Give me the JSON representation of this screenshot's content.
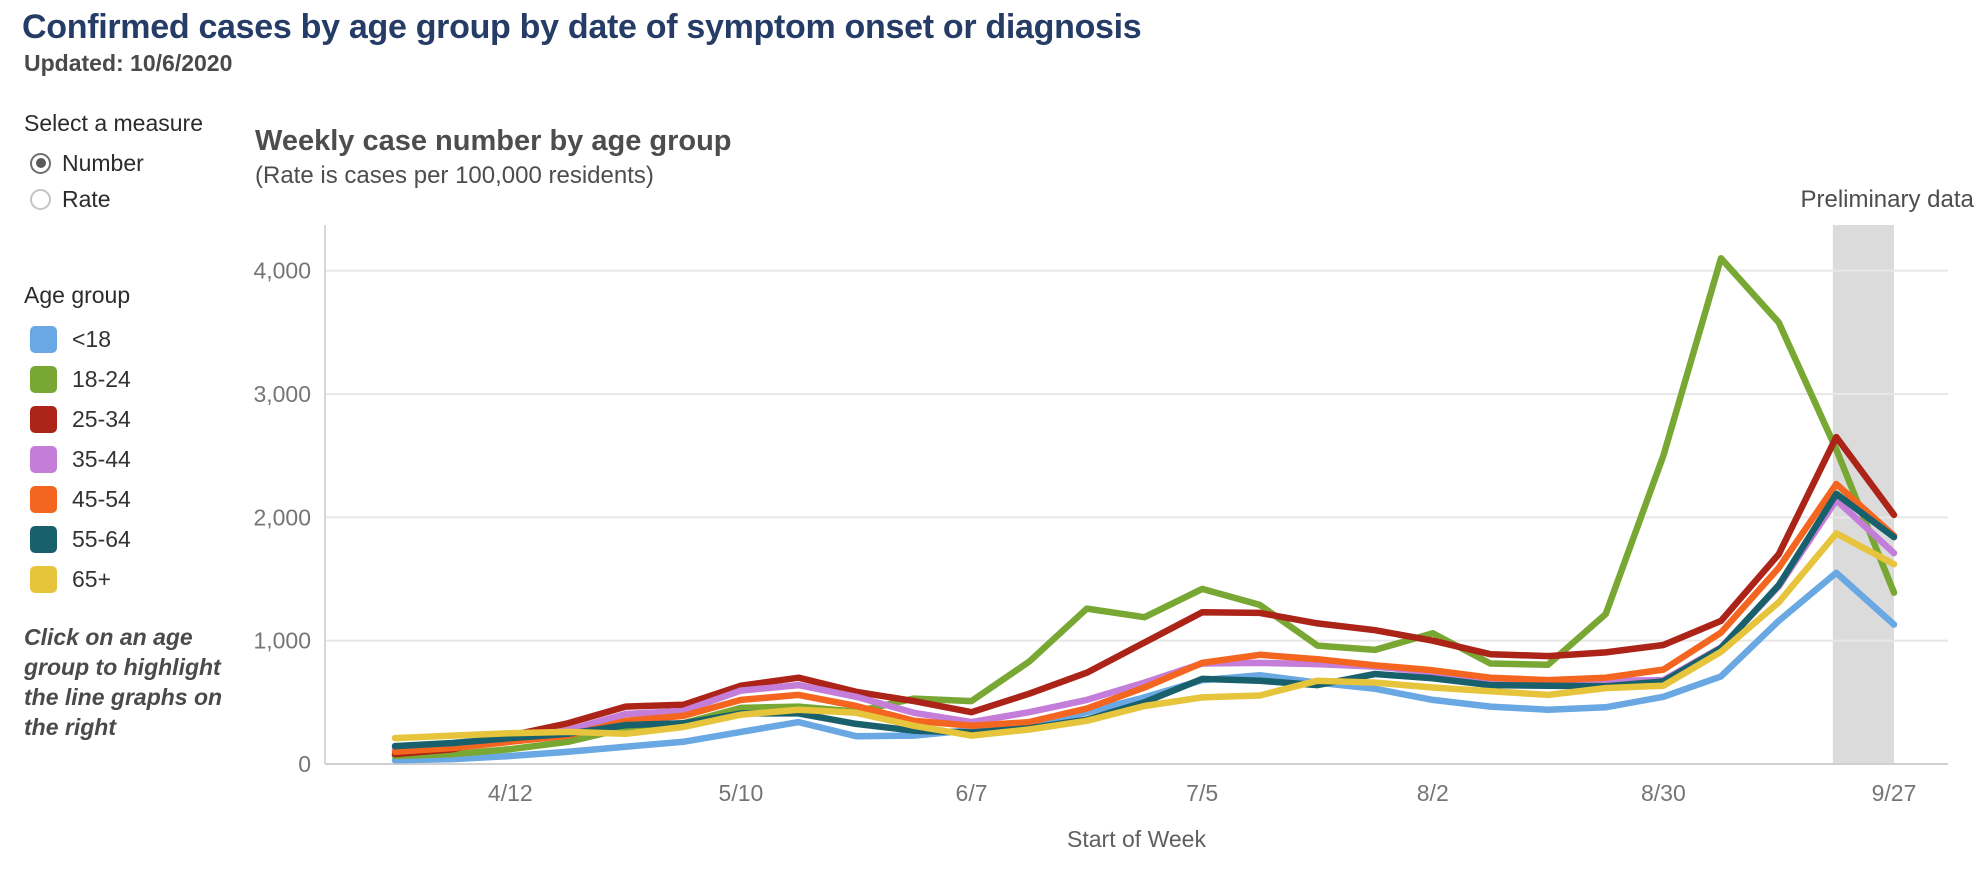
{
  "header": {
    "title": "Confirmed cases by age group by date of symptom onset or diagnosis",
    "updated": "Updated: 10/6/2020"
  },
  "controls": {
    "measure_label": "Select a measure",
    "options": [
      {
        "label": "Number",
        "selected": true
      },
      {
        "label": "Rate",
        "selected": false
      }
    ]
  },
  "legend": {
    "title": "Age group",
    "note": "Click on an age group to highlight the line graphs on the right"
  },
  "chart": {
    "title": "Weekly case number by age group",
    "subtitle": "(Rate is cases per 100,000 residents)",
    "preliminary_label": "Preliminary data",
    "xlabel": "Start of Week"
  },
  "chart_data": {
    "type": "line",
    "title": "Weekly case number by age group",
    "subtitle": "(Rate is cases per 100,000 residents)",
    "xlabel": "Start of Week",
    "ylabel": "",
    "grid": "horizontal",
    "legend_position": "left",
    "x": [
      "3/29",
      "4/5",
      "4/12",
      "4/19",
      "4/26",
      "5/3",
      "5/10",
      "5/17",
      "5/24",
      "5/31",
      "6/7",
      "6/14",
      "6/21",
      "6/28",
      "7/5",
      "7/12",
      "7/19",
      "7/26",
      "8/2",
      "8/9",
      "8/16",
      "8/23",
      "8/30",
      "9/6",
      "9/13",
      "9/20",
      "9/27"
    ],
    "x_tick_labels": [
      "4/12",
      "5/10",
      "6/7",
      "7/5",
      "8/2",
      "8/30",
      "9/27"
    ],
    "y_ticks": [
      0,
      1000,
      2000,
      3000,
      4000
    ],
    "ylim": [
      0,
      4370
    ],
    "preliminary_band_x": [
      "9/20",
      "9/27"
    ],
    "band_color": "#DBDBDB",
    "series": [
      {
        "name": "<18",
        "color": "#69A8E3",
        "values": [
          30,
          40,
          65,
          100,
          140,
          180,
          260,
          340,
          225,
          230,
          275,
          310,
          420,
          540,
          680,
          720,
          660,
          610,
          520,
          465,
          440,
          460,
          545,
          710,
          1160,
          1550,
          1130
        ]
      },
      {
        "name": "18-24",
        "color": "#78A833",
        "values": [
          65,
          80,
          120,
          180,
          290,
          330,
          455,
          465,
          425,
          530,
          510,
          830,
          1260,
          1190,
          1420,
          1290,
          960,
          925,
          1060,
          815,
          805,
          1215,
          2500,
          4100,
          3580,
          2550,
          1390
        ]
      },
      {
        "name": "25-34",
        "color": "#AC2318",
        "values": [
          80,
          120,
          230,
          330,
          465,
          480,
          635,
          700,
          585,
          510,
          420,
          570,
          740,
          985,
          1230,
          1225,
          1140,
          1085,
          1000,
          890,
          875,
          905,
          965,
          1160,
          1700,
          2650,
          2020
        ]
      },
      {
        "name": "35-44",
        "color": "#C47DD8",
        "values": [
          120,
          145,
          195,
          275,
          405,
          430,
          595,
          640,
          545,
          415,
          340,
          420,
          520,
          660,
          815,
          820,
          810,
          790,
          745,
          690,
          665,
          675,
          680,
          945,
          1440,
          2140,
          1710
        ]
      },
      {
        "name": "45-54",
        "color": "#F4661F",
        "values": [
          100,
          130,
          180,
          230,
          350,
          390,
          520,
          560,
          470,
          350,
          310,
          340,
          450,
          620,
          820,
          885,
          850,
          800,
          760,
          700,
          680,
          700,
          765,
          1065,
          1590,
          2270,
          1850
        ]
      },
      {
        "name": "55-64",
        "color": "#18606B",
        "values": [
          145,
          170,
          210,
          245,
          315,
          330,
          410,
          410,
          325,
          270,
          255,
          290,
          360,
          500,
          690,
          675,
          640,
          730,
          695,
          640,
          635,
          630,
          670,
          940,
          1450,
          2190,
          1840
        ]
      },
      {
        "name": "65+",
        "color": "#E6C43C",
        "values": [
          210,
          230,
          250,
          260,
          245,
          300,
          400,
          440,
          415,
          310,
          230,
          280,
          350,
          470,
          540,
          555,
          675,
          660,
          620,
          590,
          560,
          615,
          635,
          910,
          1310,
          1870,
          1620
        ]
      }
    ]
  }
}
